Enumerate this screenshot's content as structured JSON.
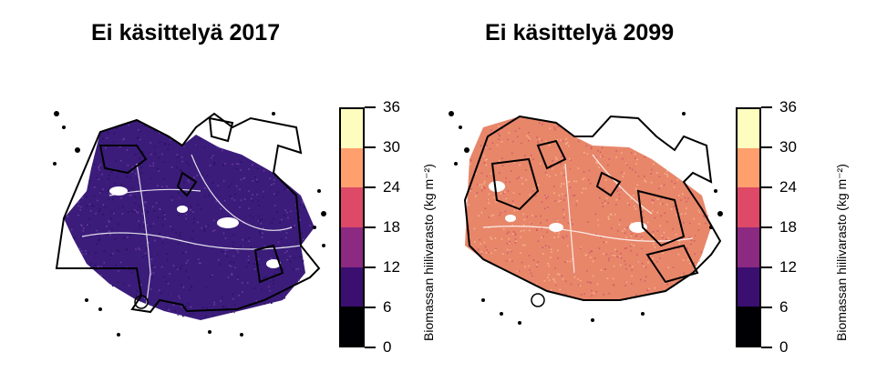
{
  "panels": [
    {
      "title": "Ei käsittelyä 2017",
      "fill": "#3b1c7a",
      "fill2": "#2a1260",
      "speckle": "#6a3aa0"
    },
    {
      "title": "Ei käsittelyä 2099",
      "fill": "#e8866a",
      "fill2": "#d05c6a",
      "speckle": "#f5b48a"
    }
  ],
  "legend": {
    "title": "Biomassan hiilivarasto (kg m⁻²)",
    "ticks": [
      "0",
      "6",
      "12",
      "18",
      "24",
      "30",
      "36"
    ],
    "colors": [
      "#000004",
      "#3b0f70",
      "#8c2981",
      "#de4968",
      "#fe9f6d",
      "#fcfdbf"
    ]
  }
}
